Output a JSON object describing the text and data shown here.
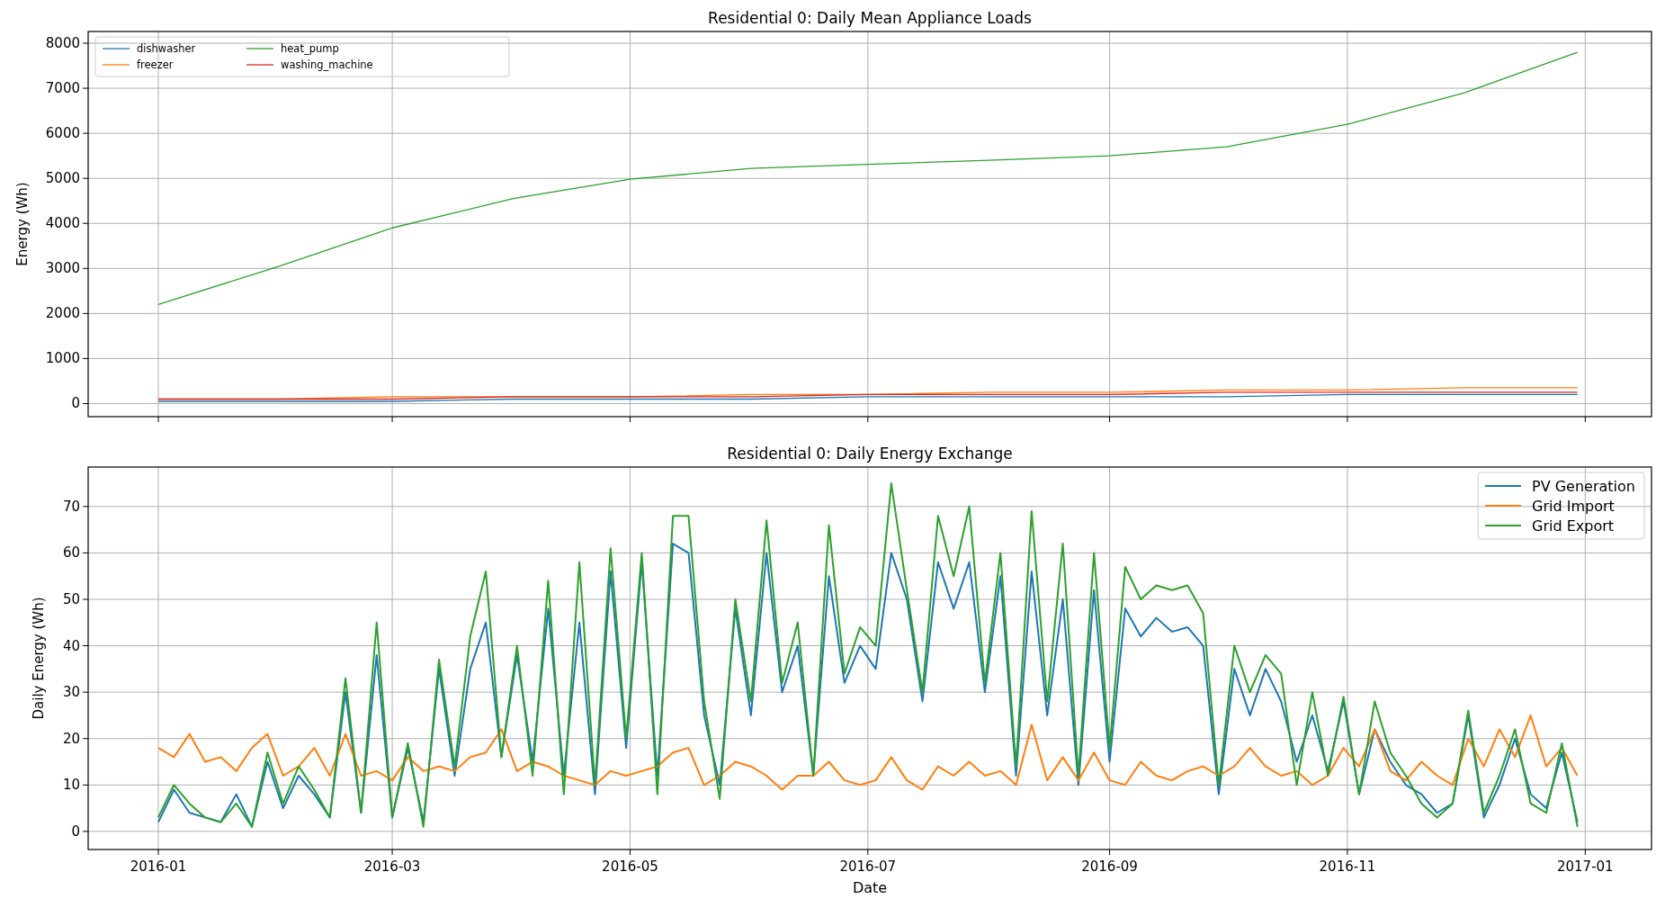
{
  "chart_data": [
    {
      "type": "line",
      "title": "Residential 0: Daily Mean Appliance Loads",
      "ylabel": "Energy (Wh)",
      "x": [
        "2016-01-01",
        "2016-02-01",
        "2016-03-01",
        "2016-04-01",
        "2016-05-01",
        "2016-06-01",
        "2016-07-01",
        "2016-08-01",
        "2016-09-01",
        "2016-10-01",
        "2016-11-01",
        "2016-12-01",
        "2016-12-30"
      ],
      "series": [
        {
          "name": "dishwasher",
          "color": "#1f77b4",
          "values": [
            50,
            50,
            50,
            100,
            100,
            100,
            150,
            150,
            150,
            150,
            200,
            200,
            200
          ]
        },
        {
          "name": "freezer",
          "color": "#ff7f0e",
          "values": [
            100,
            100,
            150,
            150,
            150,
            200,
            200,
            250,
            250,
            300,
            300,
            350,
            350
          ]
        },
        {
          "name": "heat_pump",
          "color": "#2ca02c",
          "values": [
            2200,
            3050,
            3900,
            4550,
            4980,
            5220,
            5310,
            5400,
            5500,
            5700,
            6200,
            6900,
            7800
          ]
        },
        {
          "name": "washing_machine",
          "color": "#d62728",
          "values": [
            100,
            100,
            100,
            150,
            150,
            150,
            200,
            200,
            200,
            250,
            250,
            250,
            250
          ]
        }
      ],
      "xlim": [
        "2015-12-14",
        "2017-01-18"
      ],
      "xticks": [
        "2016-01",
        "2016-03",
        "2016-05",
        "2016-07",
        "2016-09",
        "2016-11",
        "2017-01"
      ],
      "ylim": [
        -290,
        8260
      ],
      "yticks": [
        0,
        1000,
        2000,
        3000,
        4000,
        5000,
        6000,
        7000,
        8000
      ],
      "grid": true,
      "legend": "top left",
      "tick_labels": "y"
    },
    {
      "type": "line",
      "title": "Residential 0: Daily Energy Exchange",
      "xlabel": "Date",
      "ylabel": "Daily Energy (Wh)",
      "x": [
        "2016-01-01",
        "2016-01-05",
        "2016-01-09",
        "2016-01-13",
        "2016-01-17",
        "2016-01-21",
        "2016-01-25",
        "2016-01-29",
        "2016-02-02",
        "2016-02-06",
        "2016-02-10",
        "2016-02-14",
        "2016-02-18",
        "2016-02-22",
        "2016-02-26",
        "2016-03-01",
        "2016-03-05",
        "2016-03-09",
        "2016-03-13",
        "2016-03-17",
        "2016-03-21",
        "2016-03-25",
        "2016-03-29",
        "2016-04-02",
        "2016-04-06",
        "2016-04-10",
        "2016-04-14",
        "2016-04-18",
        "2016-04-22",
        "2016-04-26",
        "2016-04-30",
        "2016-05-04",
        "2016-05-08",
        "2016-05-12",
        "2016-05-16",
        "2016-05-20",
        "2016-05-24",
        "2016-05-28",
        "2016-06-01",
        "2016-06-05",
        "2016-06-09",
        "2016-06-13",
        "2016-06-17",
        "2016-06-21",
        "2016-06-25",
        "2016-06-29",
        "2016-07-03",
        "2016-07-07",
        "2016-07-11",
        "2016-07-15",
        "2016-07-19",
        "2016-07-23",
        "2016-07-27",
        "2016-07-31",
        "2016-08-04",
        "2016-08-08",
        "2016-08-12",
        "2016-08-16",
        "2016-08-20",
        "2016-08-24",
        "2016-08-28",
        "2016-09-01",
        "2016-09-05",
        "2016-09-09",
        "2016-09-13",
        "2016-09-17",
        "2016-09-21",
        "2016-09-25",
        "2016-09-29",
        "2016-10-03",
        "2016-10-07",
        "2016-10-11",
        "2016-10-15",
        "2016-10-19",
        "2016-10-23",
        "2016-10-27",
        "2016-10-31",
        "2016-11-04",
        "2016-11-08",
        "2016-11-12",
        "2016-11-16",
        "2016-11-20",
        "2016-11-24",
        "2016-11-28",
        "2016-12-02",
        "2016-12-06",
        "2016-12-10",
        "2016-12-14",
        "2016-12-18",
        "2016-12-22",
        "2016-12-26",
        "2016-12-30"
      ],
      "series": [
        {
          "name": "PV Generation",
          "color": "#1f77b4",
          "values": [
            2,
            9,
            4,
            3,
            2,
            8,
            1,
            15,
            5,
            12,
            8,
            3,
            30,
            4,
            38,
            3,
            18,
            2,
            35,
            12,
            35,
            45,
            16,
            38,
            15,
            48,
            12,
            45,
            8,
            56,
            18,
            58,
            12,
            62,
            60,
            25,
            10,
            48,
            25,
            60,
            30,
            40,
            12,
            55,
            32,
            40,
            35,
            60,
            50,
            28,
            58,
            48,
            58,
            30,
            55,
            12,
            56,
            25,
            50,
            10,
            52,
            15,
            48,
            42,
            46,
            43,
            44,
            40,
            8,
            35,
            25,
            35,
            28,
            15,
            25,
            13,
            28,
            8,
            22,
            15,
            10,
            8,
            4,
            6,
            25,
            3,
            10,
            20,
            8,
            5,
            17,
            2
          ]
        },
        {
          "name": "Grid Import",
          "color": "#ff7f0e",
          "values": [
            18,
            16,
            21,
            15,
            16,
            13,
            18,
            21,
            12,
            14,
            18,
            12,
            21,
            12,
            13,
            11,
            16,
            13,
            14,
            13,
            16,
            17,
            22,
            13,
            15,
            14,
            12,
            11,
            10,
            13,
            12,
            13,
            14,
            17,
            18,
            10,
            12,
            15,
            14,
            12,
            9,
            12,
            12,
            15,
            11,
            10,
            11,
            16,
            11,
            9,
            14,
            12,
            15,
            12,
            13,
            10,
            23,
            11,
            16,
            11,
            17,
            11,
            10,
            15,
            12,
            11,
            13,
            14,
            12,
            14,
            18,
            14,
            12,
            13,
            10,
            12,
            18,
            14,
            22,
            13,
            11,
            15,
            12,
            10,
            20,
            14,
            22,
            16,
            25,
            14,
            18,
            12
          ]
        },
        {
          "name": "Grid Export",
          "color": "#2ca02c",
          "values": [
            3,
            10,
            6,
            3,
            2,
            6,
            1,
            17,
            6,
            14,
            9,
            3,
            33,
            4,
            45,
            3,
            19,
            1,
            37,
            14,
            42,
            56,
            16,
            40,
            12,
            54,
            8,
            58,
            10,
            61,
            20,
            60,
            8,
            68,
            68,
            28,
            7,
            50,
            28,
            67,
            32,
            45,
            12,
            66,
            34,
            44,
            40,
            75,
            52,
            30,
            68,
            55,
            70,
            32,
            60,
            14,
            69,
            28,
            62,
            12,
            60,
            18,
            57,
            50,
            53,
            52,
            53,
            47,
            10,
            40,
            30,
            38,
            34,
            10,
            30,
            12,
            29,
            8,
            28,
            17,
            12,
            6,
            3,
            6,
            26,
            4,
            12,
            22,
            6,
            4,
            19,
            1
          ]
        }
      ],
      "xlim": [
        "2015-12-14",
        "2017-01-18"
      ],
      "xticks": [
        "2016-01",
        "2016-03",
        "2016-05",
        "2016-07",
        "2016-09",
        "2016-11",
        "2017-01"
      ],
      "ylim": [
        -3.9,
        78.5
      ],
      "yticks": [
        0,
        10,
        20,
        30,
        40,
        50,
        60,
        70
      ],
      "grid": true,
      "legend": "top right"
    }
  ]
}
